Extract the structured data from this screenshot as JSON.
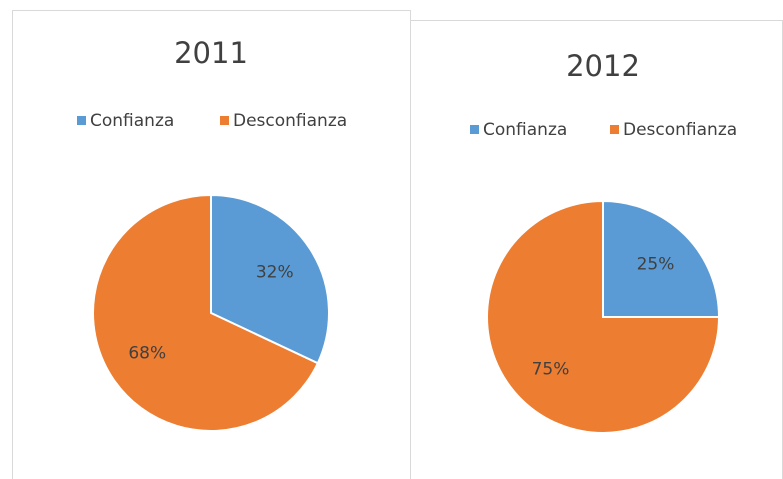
{
  "chart_data": [
    {
      "type": "pie",
      "title": "2011",
      "categories": [
        "Confianza",
        "Desconfianza"
      ],
      "values": [
        32,
        68
      ],
      "value_labels": [
        "32%",
        "68%"
      ],
      "colors": [
        "#5b9bd5",
        "#ed7d31"
      ],
      "legend": "top"
    },
    {
      "type": "pie",
      "title": "2012",
      "categories": [
        "Confianza",
        "Desconfianza"
      ],
      "values": [
        25,
        75
      ],
      "value_labels": [
        "25%",
        "75%"
      ],
      "colors": [
        "#5b9bd5",
        "#ed7d31"
      ],
      "legend": "top"
    }
  ]
}
